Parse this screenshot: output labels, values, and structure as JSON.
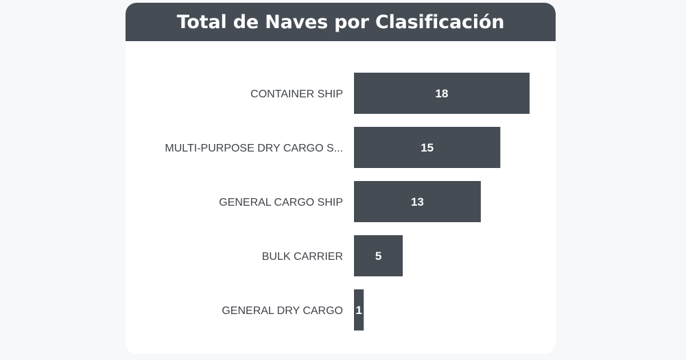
{
  "chart_data": {
    "type": "bar",
    "orientation": "horizontal",
    "title": "Total de Naves por Clasificación",
    "categories": [
      "CONTAINER SHIP",
      "MULTI-PURPOSE DRY CARGO S...",
      "GENERAL CARGO SHIP",
      "BULK CARRIER",
      "GENERAL DRY CARGO"
    ],
    "values": [
      18,
      15,
      13,
      5,
      1
    ],
    "xlim": [
      0,
      18
    ],
    "grid": false,
    "legend": "none",
    "bar_color": "#454c54",
    "title_bar_color": "#454c54",
    "value_label_color": "#ffffff"
  }
}
